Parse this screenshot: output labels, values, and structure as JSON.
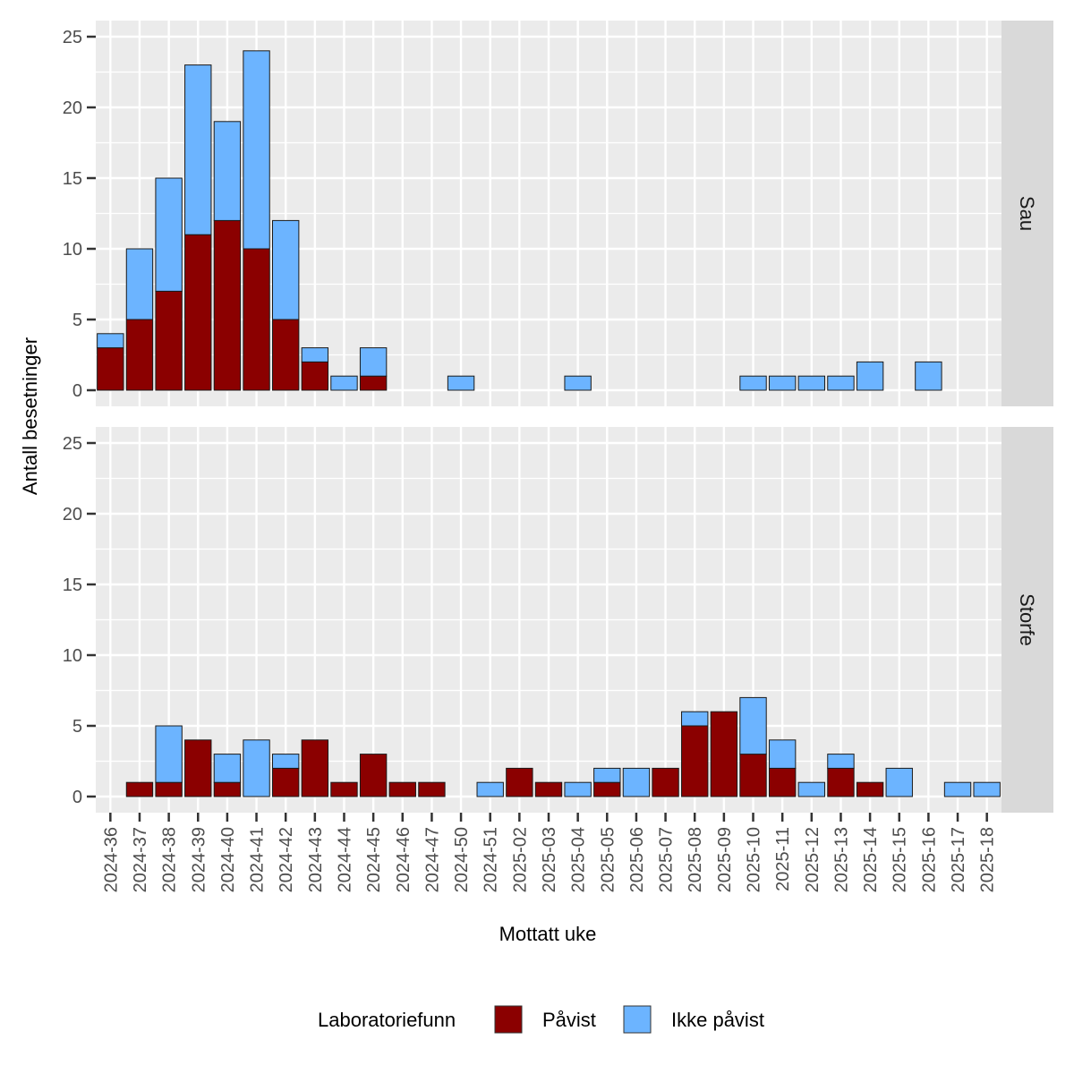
{
  "chart_data": {
    "type": "bar",
    "stacked": true,
    "xlabel": "Mottatt uke",
    "ylabel": "Antall besetninger",
    "ylim": [
      0,
      25
    ],
    "yticks": [
      0,
      5,
      10,
      15,
      20,
      25
    ],
    "grid": true,
    "legend": {
      "position": "bottom",
      "title": "Laboratoriefunn",
      "entries": [
        "Påvist",
        "Ikke påvist"
      ]
    },
    "colors": {
      "Påvist": "#8b0000",
      "Ikke påvist": "#6cb4ff",
      "panel_background": "#ebebeb",
      "strip_background": "#d9d9d9"
    },
    "categories": [
      "2024-36",
      "2024-37",
      "2024-38",
      "2024-39",
      "2024-40",
      "2024-41",
      "2024-42",
      "2024-43",
      "2024-44",
      "2024-45",
      "2024-46",
      "2024-47",
      "2024-50",
      "2024-51",
      "2025-02",
      "2025-03",
      "2025-04",
      "2025-05",
      "2025-06",
      "2025-07",
      "2025-08",
      "2025-09",
      "2025-10",
      "2025-11",
      "2025-12",
      "2025-13",
      "2025-14",
      "2025-15",
      "2025-16",
      "2025-17",
      "2025-18"
    ],
    "panels": [
      {
        "name": "Sau",
        "series": [
          {
            "name": "Påvist",
            "values": [
              3,
              5,
              7,
              11,
              12,
              10,
              5,
              2,
              0,
              1,
              0,
              0,
              0,
              0,
              0,
              0,
              0,
              0,
              0,
              0,
              0,
              0,
              0,
              0,
              0,
              0,
              0,
              0,
              0,
              0,
              0
            ]
          },
          {
            "name": "Ikke påvist",
            "values": [
              1,
              5,
              8,
              12,
              7,
              14,
              7,
              1,
              1,
              2,
              0,
              0,
              1,
              0,
              0,
              0,
              1,
              0,
              0,
              0,
              0,
              0,
              1,
              1,
              1,
              1,
              2,
              0,
              2,
              0,
              0
            ]
          }
        ]
      },
      {
        "name": "Storfe",
        "series": [
          {
            "name": "Påvist",
            "values": [
              0,
              1,
              1,
              4,
              1,
              0,
              2,
              4,
              1,
              3,
              1,
              1,
              0,
              0,
              2,
              1,
              0,
              1,
              0,
              2,
              5,
              6,
              3,
              2,
              0,
              2,
              1,
              0,
              0,
              0,
              0
            ]
          },
          {
            "name": "Ikke påvist",
            "values": [
              0,
              0,
              4,
              0,
              2,
              4,
              1,
              0,
              0,
              0,
              0,
              0,
              0,
              1,
              0,
              0,
              1,
              1,
              2,
              0,
              1,
              0,
              4,
              2,
              1,
              1,
              0,
              2,
              0,
              1,
              1
            ]
          }
        ]
      }
    ]
  }
}
